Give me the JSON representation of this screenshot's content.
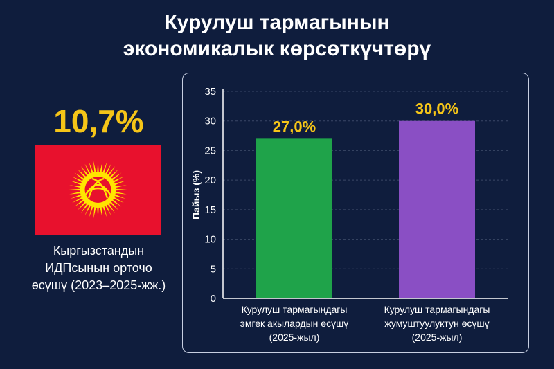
{
  "title_lines": [
    "Курулуш тармагынын",
    "экономикалык көрсөткүчтөрү"
  ],
  "kpi": {
    "value": "10,7%",
    "caption_lines": [
      "Кыргызстандын",
      "ИДПсынын орточо",
      "өсүшү (2023–2025-жж.)"
    ]
  },
  "flag": {
    "icon": "kyrgyzstan-flag-icon",
    "field_color": "#e8112d",
    "sun_color": "#ffe600"
  },
  "colors": {
    "background": "#0f1d3d",
    "accent": "#f5c518"
  },
  "chart_data": {
    "type": "bar",
    "ylabel": "Пайыз (%)",
    "ylim": [
      0,
      35
    ],
    "yticks": [
      0,
      5,
      10,
      15,
      20,
      25,
      30,
      35
    ],
    "grid": true,
    "categories": [
      [
        "Курулуш тармагындагы",
        "эмгек акылардын өсүшү",
        "(2025-жыл)"
      ],
      [
        "Курулуш тармагындагы",
        "жумуштуулуктун өсүшү",
        "(2025-жыл)"
      ]
    ],
    "values": [
      27.0,
      30.0
    ],
    "value_labels": [
      "27,0%",
      "30,0%"
    ],
    "bar_colors": [
      "#1fa34a",
      "#8a4fc4"
    ]
  }
}
